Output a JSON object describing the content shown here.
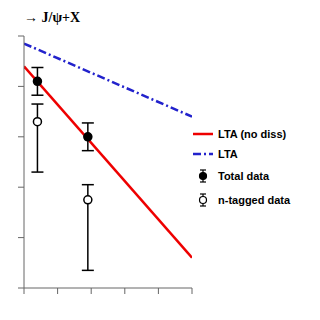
{
  "chart_data": {
    "type": "line",
    "title": "→ J/ψ+X",
    "series": [
      {
        "name": "LTA (no diss)",
        "type": "line",
        "color": "#ee0000",
        "line_style": "solid",
        "x": [
          0.0,
          1.0
        ],
        "values": [
          0.88,
          0.12
        ]
      },
      {
        "name": "LTA",
        "type": "line",
        "color": "#2222cc",
        "line_style": "dashdot",
        "x": [
          0.0,
          1.0
        ],
        "values": [
          0.97,
          0.68
        ]
      },
      {
        "name": "Total data",
        "type": "scatter",
        "color": "#000000",
        "marker": "filled_circle",
        "x": [
          0.08,
          0.38
        ],
        "values": [
          0.82,
          0.6
        ],
        "error_low": [
          0.055,
          0.055
        ],
        "error_high": [
          0.055,
          0.055
        ]
      },
      {
        "name": "n-tagged data",
        "type": "scatter",
        "color": "#000000",
        "marker": "open_circle",
        "x": [
          0.08,
          0.38
        ],
        "values": [
          0.66,
          0.35
        ],
        "error_low": [
          0.2,
          0.28
        ],
        "error_high": [
          0.07,
          0.06
        ]
      }
    ],
    "xlim": [
      0.0,
      1.0
    ],
    "ylim": [
      0.0,
      1.0
    ],
    "xticks": [
      0.0,
      0.2,
      0.4,
      0.6,
      0.8,
      1.0
    ],
    "yticks": [
      0.0,
      0.2,
      0.4,
      0.6,
      0.8,
      1.0
    ],
    "tick_labels": false,
    "legend": "right"
  }
}
